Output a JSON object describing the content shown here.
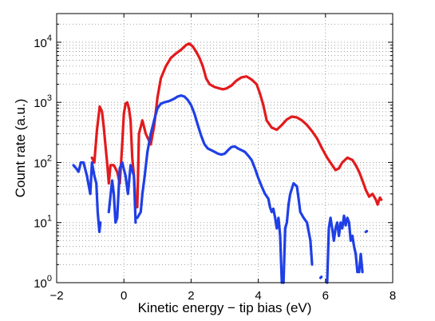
{
  "chart_data": {
    "type": "line",
    "title": "",
    "xlabel": "Kinetic energy − tip bias (eV)",
    "ylabel": "Count rate (a.u.)",
    "xlim": [
      -2,
      8
    ],
    "ylim": [
      1,
      30000
    ],
    "y_scale": "log",
    "grid": "dotted",
    "legend": "none",
    "x_ticks": [
      {
        "value": -2,
        "label": "−2"
      },
      {
        "value": 0,
        "label": "0"
      },
      {
        "value": 2,
        "label": "2"
      },
      {
        "value": 4,
        "label": "4"
      },
      {
        "value": 6,
        "label": "6"
      },
      {
        "value": 8,
        "label": "8"
      }
    ],
    "y_ticks": [
      {
        "value": 1,
        "base": "10",
        "exp": "0"
      },
      {
        "value": 10,
        "base": "10",
        "exp": "1"
      },
      {
        "value": 100,
        "base": "10",
        "exp": "2"
      },
      {
        "value": 1000,
        "base": "10",
        "exp": "3"
      },
      {
        "value": 10000,
        "base": "10",
        "exp": "4"
      }
    ],
    "series": [
      {
        "color": "#e31a1c",
        "segments": [
          [
            [
              -0.95,
              120
            ],
            [
              -0.88,
              100
            ],
            [
              -0.8,
              350
            ],
            [
              -0.72,
              850
            ],
            [
              -0.65,
              700
            ],
            [
              -0.6,
              400
            ],
            [
              -0.55,
              200
            ],
            [
              -0.5,
              100
            ],
            [
              -0.45,
              45
            ],
            [
              -0.4,
              90
            ],
            [
              -0.3,
              90
            ],
            [
              -0.2,
              70
            ],
            [
              -0.12,
              45
            ],
            [
              -0.05,
              200
            ],
            [
              0,
              650
            ],
            [
              0.05,
              950
            ],
            [
              0.1,
              1000
            ],
            [
              0.15,
              800
            ],
            [
              0.2,
              500
            ],
            [
              0.25,
              120
            ],
            [
              0.3,
              60
            ],
            [
              0.35,
              20
            ]
          ],
          [
            [
              0.4,
              18
            ],
            [
              0.45,
              300
            ],
            [
              0.55,
              500
            ],
            [
              0.65,
              300
            ],
            [
              0.8,
              200
            ],
            [
              0.9,
              400
            ],
            [
              1.0,
              1200
            ],
            [
              1.1,
              2500
            ],
            [
              1.25,
              4000
            ],
            [
              1.4,
              5500
            ],
            [
              1.55,
              6500
            ],
            [
              1.7,
              7500
            ],
            [
              1.85,
              9000
            ],
            [
              1.95,
              9500
            ],
            [
              2.05,
              8500
            ],
            [
              2.15,
              7000
            ],
            [
              2.25,
              5500
            ],
            [
              2.35,
              4000
            ],
            [
              2.45,
              2500
            ],
            [
              2.55,
              2000
            ],
            [
              2.7,
              1800
            ],
            [
              2.85,
              1700
            ],
            [
              2.95,
              1650
            ],
            [
              3.05,
              1700
            ],
            [
              3.2,
              1900
            ],
            [
              3.35,
              2300
            ],
            [
              3.5,
              2600
            ],
            [
              3.65,
              2700
            ],
            [
              3.8,
              2400
            ],
            [
              3.95,
              2000
            ],
            [
              4.05,
              1400
            ],
            [
              4.15,
              900
            ],
            [
              4.25,
              500
            ],
            [
              4.4,
              380
            ],
            [
              4.55,
              350
            ],
            [
              4.7,
              420
            ],
            [
              4.85,
              520
            ],
            [
              5.0,
              580
            ],
            [
              5.15,
              560
            ],
            [
              5.3,
              500
            ],
            [
              5.45,
              420
            ],
            [
              5.6,
              330
            ],
            [
              5.75,
              250
            ],
            [
              5.9,
              170
            ],
            [
              6.05,
              120
            ],
            [
              6.2,
              90
            ],
            [
              6.3,
              75
            ],
            [
              6.4,
              80
            ],
            [
              6.5,
              100
            ],
            [
              6.65,
              120
            ],
            [
              6.8,
              110
            ],
            [
              6.9,
              90
            ],
            [
              7.0,
              70
            ],
            [
              7.1,
              50
            ],
            [
              7.2,
              35
            ],
            [
              7.3,
              27
            ],
            [
              7.4,
              30
            ],
            [
              7.5,
              24
            ],
            [
              7.55,
              20
            ],
            [
              7.62,
              26
            ],
            [
              7.66,
              24
            ]
          ]
        ]
      },
      {
        "color": "#1f3fe6",
        "segments": [
          [
            [
              -1.5,
              90
            ],
            [
              -1.42,
              80
            ],
            [
              -1.35,
              70
            ],
            [
              -1.28,
              100
            ],
            [
              -1.2,
              100
            ],
            [
              -1.1,
              60
            ],
            [
              -1.0,
              30
            ],
            [
              -0.95,
              100
            ],
            [
              -0.88,
              60
            ],
            [
              -0.82,
              45
            ],
            [
              -0.78,
              15
            ],
            [
              -0.73,
              7
            ],
            [
              -0.7,
              10
            ]
          ],
          [
            [
              -0.45,
              15
            ],
            [
              -0.35,
              50
            ],
            [
              -0.3,
              30
            ],
            [
              -0.25,
              10
            ],
            [
              -0.2,
              12
            ],
            [
              -0.12,
              80
            ],
            [
              -0.05,
              100
            ],
            [
              0.05,
              60
            ],
            [
              0.12,
              30
            ],
            [
              0.2,
              90
            ],
            [
              0.3,
              60
            ],
            [
              0.35,
              10
            ]
          ],
          [
            [
              0.4,
              12
            ],
            [
              0.5,
              15
            ],
            [
              0.55,
              30
            ],
            [
              0.62,
              60
            ],
            [
              0.7,
              150
            ],
            [
              0.8,
              300
            ],
            [
              0.9,
              500
            ],
            [
              1.0,
              800
            ],
            [
              1.1,
              950
            ],
            [
              1.2,
              1000
            ],
            [
              1.35,
              1050
            ],
            [
              1.5,
              1150
            ],
            [
              1.6,
              1250
            ],
            [
              1.7,
              1300
            ],
            [
              1.8,
              1250
            ],
            [
              1.9,
              1100
            ],
            [
              2.0,
              900
            ],
            [
              2.1,
              650
            ],
            [
              2.2,
              420
            ],
            [
              2.3,
              280
            ],
            [
              2.4,
              200
            ],
            [
              2.5,
              170
            ],
            [
              2.6,
              160
            ],
            [
              2.7,
              150
            ],
            [
              2.8,
              140
            ],
            [
              2.9,
              135
            ],
            [
              3.0,
              140
            ],
            [
              3.1,
              160
            ],
            [
              3.2,
              180
            ],
            [
              3.3,
              185
            ],
            [
              3.4,
              170
            ],
            [
              3.5,
              160
            ],
            [
              3.6,
              150
            ],
            [
              3.7,
              130
            ],
            [
              3.8,
              110
            ],
            [
              3.9,
              80
            ],
            [
              4.0,
              55
            ],
            [
              4.1,
              40
            ],
            [
              4.2,
              30
            ],
            [
              4.3,
              25
            ],
            [
              4.35,
              18
            ],
            [
              4.4,
              15
            ],
            [
              4.45,
              17
            ],
            [
              4.5,
              12
            ],
            [
              4.55,
              8
            ],
            [
              4.6,
              12
            ],
            [
              4.65,
              6
            ],
            [
              4.7,
              1
            ]
          ],
          [
            [
              4.75,
              1
            ],
            [
              4.8,
              8
            ],
            [
              4.85,
              10
            ],
            [
              4.9,
              20
            ],
            [
              4.95,
              30
            ],
            [
              5.05,
              45
            ],
            [
              5.15,
              40
            ],
            [
              5.2,
              25
            ],
            [
              5.25,
              15
            ],
            [
              5.35,
              12
            ],
            [
              5.45,
              10
            ],
            [
              5.55,
              5
            ],
            [
              5.6,
              2
            ]
          ],
          [
            [
              5.85,
              1.2
            ],
            [
              5.88,
              1.25
            ]
          ],
          [
            [
              6.05,
              1
            ],
            [
              6.1,
              8
            ],
            [
              6.15,
              12
            ],
            [
              6.2,
              8
            ],
            [
              6.25,
              5
            ],
            [
              6.3,
              8
            ],
            [
              6.35,
              10
            ],
            [
              6.4,
              6
            ],
            [
              6.45,
              10
            ],
            [
              6.5,
              8
            ],
            [
              6.55,
              13
            ],
            [
              6.6,
              9
            ],
            [
              6.65,
              12
            ],
            [
              6.7,
              10
            ],
            [
              6.75,
              5
            ],
            [
              6.8,
              6
            ],
            [
              6.85,
              4
            ],
            [
              6.9,
              3
            ],
            [
              6.95,
              1.5
            ]
          ],
          [
            [
              7.0,
              1.5
            ],
            [
              7.05,
              3
            ],
            [
              7.1,
              1.5
            ]
          ],
          [
            [
              7.2,
              7
            ],
            [
              7.23,
              7.2
            ]
          ]
        ]
      }
    ]
  }
}
